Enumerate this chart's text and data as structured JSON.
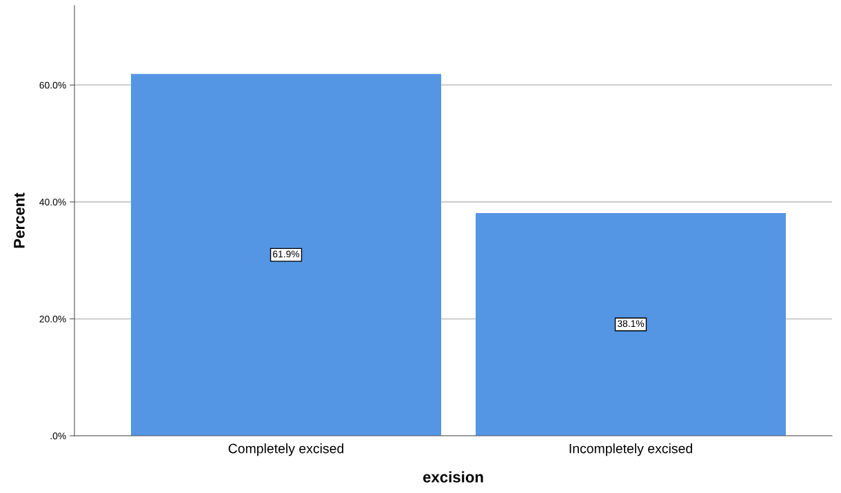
{
  "chart_data": {
    "type": "bar",
    "xlabel": "excision",
    "ylabel": "Percent",
    "categories": [
      "Completely excised",
      "Incompletely excised"
    ],
    "values": [
      61.9,
      38.1
    ],
    "value_labels": [
      "61.9%",
      "38.1%"
    ],
    "color": "#5596e4",
    "ylim": [
      0,
      73.6
    ],
    "yticks": [
      {
        "value": 0,
        "label": ".0%"
      },
      {
        "value": 20,
        "label": "20.0%"
      },
      {
        "value": 40,
        "label": "40.0%"
      },
      {
        "value": 60,
        "label": "60.0%"
      }
    ],
    "grid": "y"
  }
}
